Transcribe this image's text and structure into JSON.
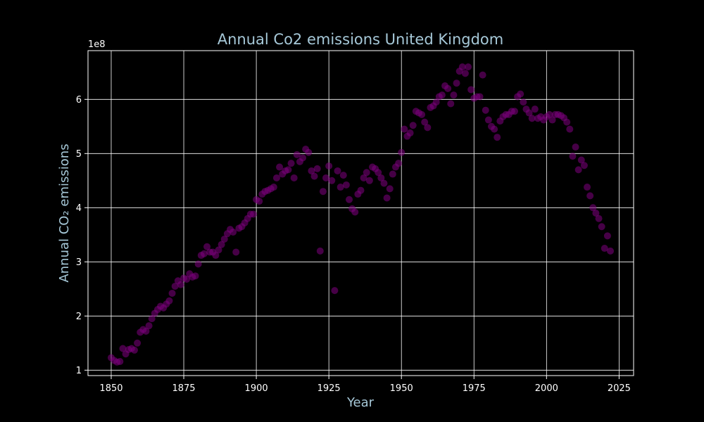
{
  "chart_data": {
    "type": "scatter",
    "title": "Annual Co2 emissions United Kingdom",
    "xlabel": "Year",
    "ylabel": "Annual CO₂ emissions",
    "y_offset_label": "1e8",
    "xlim": [
      1842,
      2030
    ],
    "ylim": [
      0.9,
      6.9
    ],
    "y_multiplier": 100000000,
    "x_ticks": [
      1850,
      1875,
      1900,
      1925,
      1950,
      1975,
      2000,
      2025
    ],
    "y_ticks": [
      1,
      2,
      3,
      4,
      5,
      6
    ],
    "grid": true,
    "colors": {
      "background": "#000000",
      "point": "#800080",
      "grid": "#ffffff",
      "title": "#a6c8d8",
      "tick": "#ffffff"
    },
    "series": [
      {
        "x": [
          1850,
          1851,
          1852,
          1853,
          1854,
          1855,
          1856,
          1857,
          1858,
          1859,
          1860,
          1861,
          1862,
          1863,
          1864,
          1865,
          1866,
          1867,
          1868,
          1869,
          1870,
          1871,
          1872,
          1873,
          1874,
          1875,
          1876,
          1877,
          1878,
          1879,
          1880,
          1881,
          1882,
          1883,
          1884,
          1885,
          1886,
          1887,
          1888,
          1889,
          1890,
          1891,
          1892,
          1893,
          1894,
          1895,
          1896,
          1897,
          1898,
          1899,
          1900,
          1901,
          1902,
          1903,
          1904,
          1905,
          1906,
          1907,
          1908,
          1909,
          1910,
          1911,
          1912,
          1913,
          1914,
          1915,
          1916,
          1917,
          1918,
          1919,
          1920,
          1921,
          1922,
          1923,
          1924,
          1925,
          1926,
          1927,
          1928,
          1929,
          1930,
          1931,
          1932,
          1933,
          1934,
          1935,
          1936,
          1937,
          1938,
          1939,
          1940,
          1941,
          1942,
          1943,
          1944,
          1945,
          1946,
          1947,
          1948,
          1949,
          1950,
          1951,
          1952,
          1953,
          1954,
          1955,
          1956,
          1957,
          1958,
          1959,
          1960,
          1961,
          1962,
          1963,
          1964,
          1965,
          1966,
          1967,
          1968,
          1969,
          1970,
          1971,
          1972,
          1973,
          1974,
          1975,
          1976,
          1977,
          1978,
          1979,
          1980,
          1981,
          1982,
          1983,
          1984,
          1985,
          1986,
          1987,
          1988,
          1989,
          1990,
          1991,
          1992,
          1993,
          1994,
          1995,
          1996,
          1997,
          1998,
          1999,
          2000,
          2001,
          2002,
          2003,
          2004,
          2005,
          2006,
          2007,
          2008,
          2009,
          2010,
          2011,
          2012,
          2013,
          2014,
          2015,
          2016,
          2017,
          2018,
          2019,
          2020,
          2021,
          2022
        ],
        "y": [
          1.23,
          1.18,
          1.15,
          1.16,
          1.4,
          1.3,
          1.38,
          1.4,
          1.37,
          1.5,
          1.7,
          1.75,
          1.72,
          1.82,
          1.95,
          2.05,
          2.12,
          2.18,
          2.15,
          2.22,
          2.28,
          2.42,
          2.55,
          2.65,
          2.58,
          2.7,
          2.68,
          2.78,
          2.72,
          2.74,
          2.96,
          3.12,
          3.15,
          3.28,
          3.18,
          3.18,
          3.12,
          3.22,
          3.32,
          3.42,
          3.52,
          3.6,
          3.55,
          3.18,
          3.62,
          3.65,
          3.72,
          3.8,
          3.88,
          3.88,
          4.15,
          4.12,
          4.25,
          4.3,
          4.32,
          4.35,
          4.38,
          4.55,
          4.75,
          4.62,
          4.68,
          4.7,
          4.82,
          4.55,
          4.98,
          4.85,
          4.92,
          5.08,
          5.02,
          4.68,
          4.58,
          4.72,
          3.2,
          4.3,
          4.55,
          4.77,
          4.5,
          2.47,
          4.68,
          4.38,
          4.6,
          4.42,
          4.15,
          3.98,
          3.92,
          4.25,
          4.32,
          4.55,
          4.65,
          4.5,
          4.75,
          4.72,
          4.65,
          4.55,
          4.45,
          4.18,
          4.35,
          4.62,
          4.75,
          4.82,
          5.02,
          5.45,
          5.32,
          5.38,
          5.52,
          5.78,
          5.75,
          5.72,
          5.58,
          5.48,
          5.85,
          5.88,
          5.95,
          6.05,
          6.08,
          6.25,
          6.2,
          5.92,
          6.08,
          6.3,
          6.52,
          6.6,
          6.48,
          6.6,
          6.18,
          6.02,
          6.05,
          6.05,
          6.45,
          5.8,
          5.62,
          5.5,
          5.45,
          5.3,
          5.6,
          5.68,
          5.72,
          5.72,
          5.78,
          5.78,
          6.05,
          6.1,
          5.95,
          5.82,
          5.75,
          5.65,
          5.82,
          5.65,
          5.68,
          5.62,
          5.68,
          5.72,
          5.62,
          5.72,
          5.72,
          5.7,
          5.66,
          5.58,
          5.45,
          4.95,
          5.12,
          4.7,
          4.88,
          4.78,
          4.38,
          4.22,
          4.0,
          3.9,
          3.8,
          3.65,
          3.25,
          3.48,
          3.2
        ]
      }
    ]
  }
}
